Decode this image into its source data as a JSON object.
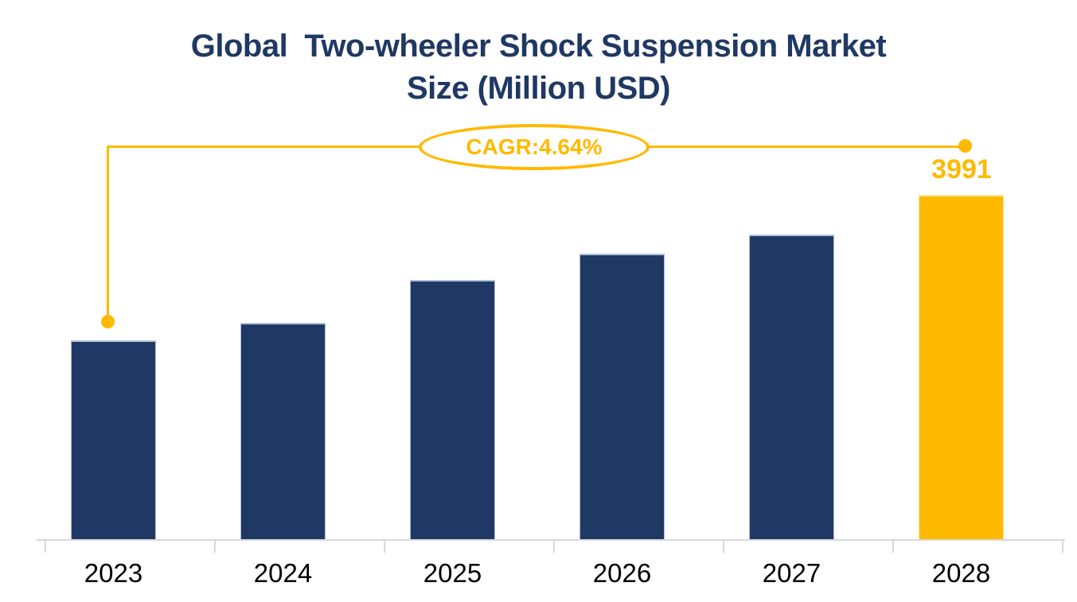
{
  "title": {
    "line1": "Global  Two-wheeler Shock Suspension Market",
    "line2": "Size (Million USD)"
  },
  "annotation": {
    "cagr_label": "CAGR:4.64%",
    "value_label": "3991"
  },
  "colors": {
    "title_navy": "#1F3864",
    "bar_navy": "#203864",
    "bar_navy_edge": "#AEBEDC",
    "gold": "#FFB900",
    "gold_edge": "#FFE699",
    "axis_gray": "#D9D9D9",
    "label_black": "#000000"
  },
  "chart_data": {
    "type": "bar",
    "title": "Global Two-wheeler Shock Suspension Market Size (Million USD)",
    "categories": [
      "2023",
      "2024",
      "2025",
      "2026",
      "2027",
      "2028"
    ],
    "values": [
      3150,
      3250,
      3500,
      3650,
      3760,
      3991
    ],
    "labeled_values": {
      "2028": 3991
    },
    "cagr_annotation": "CAGR:4.64%",
    "xlabel": "",
    "ylabel": "",
    "ylim": [
      2000,
      4000
    ],
    "grid": false,
    "legend": false,
    "y_axis_visible": false,
    "bar_color": "#203864",
    "highlight_index": 5,
    "highlight_color": "#FFB900"
  }
}
